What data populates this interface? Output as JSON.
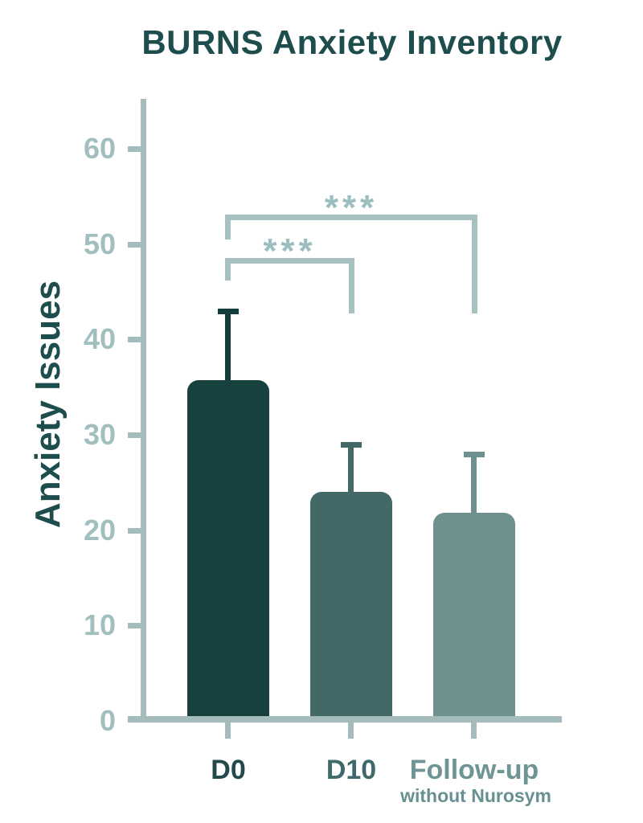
{
  "chart_data": {
    "type": "bar",
    "title": "BURNS Anxiety Inventory",
    "ylabel": "Anxiety Issues",
    "xlabel": "",
    "categories": [
      "D0",
      "D10",
      "Follow-up"
    ],
    "category_sublabels": [
      "",
      "",
      "without Nurosym"
    ],
    "values": [
      35.7,
      24,
      21.8
    ],
    "error_upper": [
      43,
      29,
      28
    ],
    "ylim": [
      0,
      65
    ],
    "yticks": [
      0,
      10,
      20,
      30,
      40,
      50,
      60
    ],
    "grid": false,
    "legend": "none",
    "significance": [
      {
        "bars": [
          "D0",
          "D10"
        ],
        "label": "***"
      },
      {
        "bars": [
          "D0",
          "Follow-up"
        ],
        "label": "***"
      }
    ],
    "colors": {
      "bars": [
        "#17413f",
        "#426968",
        "#6e9190"
      ],
      "error_bars": [
        "#133d3d",
        "#426968",
        "#6e9190"
      ],
      "axis": "#a4bcbc",
      "tick_labels": "#a2bfbf",
      "title": "#1e4d4d",
      "ylabel": "#1e4d4d",
      "x_labels": [
        "#23494d",
        "#3f696b",
        "#6f9496"
      ],
      "sublabel": "#679092",
      "bracket": "#a7c1c1",
      "significance": "#9cbec0"
    }
  }
}
